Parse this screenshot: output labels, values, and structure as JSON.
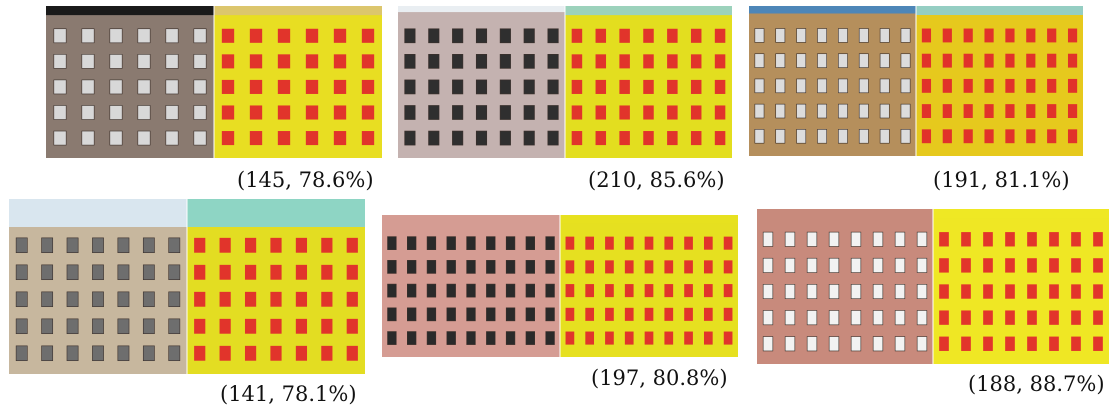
{
  "figure": {
    "panels": [
      {
        "id": "p1",
        "caption": "(145, 78.6%)",
        "floors": 5,
        "cols": 6,
        "facade": "#8a7a70",
        "sky": "#1a1a1a",
        "skyFrac": 0.06,
        "win": "#d8d8d8",
        "seg": "#e8de22",
        "mask": "#e0212c",
        "band": "#d9c27a"
      },
      {
        "id": "p2",
        "caption": "(210, 85.6%)",
        "floors": 5,
        "cols": 7,
        "facade": "#c4b2b0",
        "sky": "#e9eef2",
        "skyFrac": 0.04,
        "win": "#2f2f2f",
        "seg": "#e3de1f",
        "mask": "#e0212c",
        "band": "#8fd0d8"
      },
      {
        "id": "p3",
        "caption": "(191, 81.1%)",
        "floors": 5,
        "cols": 8,
        "facade": "#b58f5c",
        "sky": "#4d86b8",
        "skyFrac": 0.05,
        "win": "#dcdcdc",
        "seg": "#e6c91d",
        "mask": "#e0212c",
        "band": "#86cfe0"
      },
      {
        "id": "p4",
        "caption": "(141, 78.1%)",
        "floors": 5,
        "cols": 7,
        "facade": "#c7b79e",
        "sky": "#d9e6ef",
        "skyFrac": 0.16,
        "win": "#6e6e6e",
        "seg": "#e3dd22",
        "mask": "#e0212c",
        "band": "#7fd4e0"
      },
      {
        "id": "p5",
        "caption": "(197, 80.8%)",
        "floors": 5,
        "cols": 9,
        "facade": "#d59c93",
        "sky": "#ffffff",
        "skyFrac": 0.0,
        "win": "#2a2a2a",
        "seg": "#e6e020",
        "mask": "#e0212c",
        "band": "#e6e020"
      },
      {
        "id": "p6",
        "caption": "(188, 88.7%)",
        "floors": 5,
        "cols": 8,
        "facade": "#c88a7c",
        "sky": "#ffffff",
        "skyFrac": 0.0,
        "win": "#f2f2f2",
        "seg": "#efe724",
        "mask": "#e0212c",
        "band": "#efe724"
      }
    ]
  }
}
